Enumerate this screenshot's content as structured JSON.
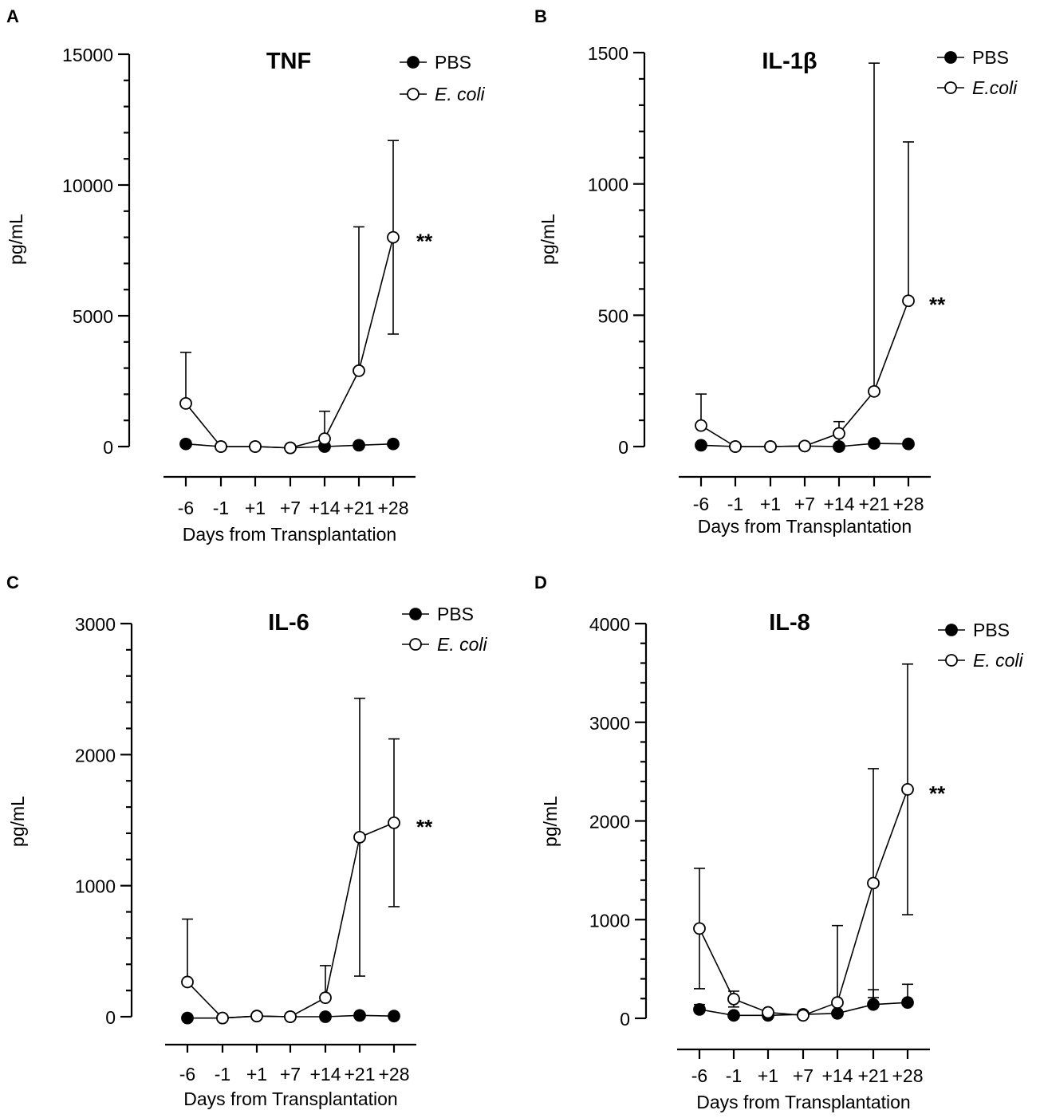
{
  "figure": {
    "panels": [
      "A",
      "B",
      "C",
      "D"
    ]
  },
  "chart_data": [
    {
      "panel": "A",
      "type": "line",
      "title": "TNF",
      "xlabel": "Days from Transplantation",
      "ylabel": "pg/mL",
      "categories": [
        "-6",
        "-1",
        "+1",
        "+7",
        "+14",
        "+21",
        "+28"
      ],
      "ylim": [
        0,
        15000
      ],
      "yticks": [
        0,
        5000,
        10000,
        15000
      ],
      "legend_position": "top-right",
      "significance": "**",
      "series": [
        {
          "name": "PBS",
          "italic": false,
          "marker": "filled",
          "values": [
            100,
            0,
            0,
            -50,
            0,
            50,
            100
          ],
          "err": [
            0,
            0,
            0,
            0,
            0,
            0,
            0
          ]
        },
        {
          "name": "E. coli",
          "italic": true,
          "marker": "open",
          "values": [
            1650,
            0,
            0,
            -50,
            300,
            2900,
            8000
          ],
          "err": [
            1950,
            0,
            0,
            0,
            1050,
            5500,
            3700
          ]
        }
      ]
    },
    {
      "panel": "B",
      "type": "line",
      "title": "IL-1β",
      "xlabel": "Days from Transplantation",
      "ylabel": "pg/mL",
      "categories": [
        "-6",
        "-1",
        "+1",
        "+7",
        "+14",
        "+21",
        "+28"
      ],
      "ylim": [
        0,
        1500
      ],
      "yticks": [
        0,
        500,
        1000,
        1500
      ],
      "legend_position": "top-right",
      "significance": "**",
      "series": [
        {
          "name": "PBS",
          "italic": false,
          "marker": "filled",
          "values": [
            5,
            0,
            0,
            2,
            0,
            12,
            10
          ],
          "err": [
            0,
            0,
            0,
            0,
            0,
            0,
            0
          ]
        },
        {
          "name": "E.coli",
          "italic": true,
          "marker": "open",
          "values": [
            80,
            0,
            0,
            2,
            50,
            210,
            555
          ],
          "err": [
            120,
            0,
            0,
            0,
            45,
            1250,
            605
          ]
        }
      ]
    },
    {
      "panel": "C",
      "type": "line",
      "title": "IL-6",
      "xlabel": "Days from Transplantation",
      "ylabel": "pg/mL",
      "categories": [
        "-6",
        "-1",
        "+1",
        "+7",
        "+14",
        "+21",
        "+28"
      ],
      "ylim": [
        0,
        3000
      ],
      "yticks": [
        0,
        1000,
        2000,
        3000
      ],
      "legend_position": "top-right",
      "significance": "**",
      "series": [
        {
          "name": "PBS",
          "italic": false,
          "marker": "filled",
          "values": [
            -10,
            -10,
            5,
            0,
            0,
            10,
            5
          ],
          "err": [
            0,
            0,
            0,
            0,
            0,
            0,
            0
          ]
        },
        {
          "name": "E. coli",
          "italic": true,
          "marker": "open",
          "values": [
            265,
            -10,
            5,
            0,
            145,
            1370,
            1480
          ],
          "err": [
            480,
            0,
            0,
            0,
            245,
            1060,
            640
          ]
        }
      ]
    },
    {
      "panel": "D",
      "type": "line",
      "title": "IL-8",
      "xlabel": "Days from Transplantation",
      "ylabel": "pg/mL",
      "categories": [
        "-6",
        "-1",
        "+1",
        "+7",
        "+14",
        "+21",
        "+28"
      ],
      "ylim": [
        0,
        4000
      ],
      "yticks": [
        0,
        1000,
        2000,
        3000,
        4000
      ],
      "legend_position": "top-right",
      "significance": "**",
      "series": [
        {
          "name": "PBS",
          "italic": false,
          "marker": "filled",
          "values": [
            90,
            30,
            30,
            40,
            50,
            140,
            160
          ],
          "err": [
            50,
            0,
            0,
            0,
            0,
            150,
            185
          ]
        },
        {
          "name": "E. coli",
          "italic": true,
          "marker": "open",
          "values": [
            910,
            195,
            60,
            30,
            160,
            1370,
            2320
          ],
          "err": [
            610,
            80,
            0,
            0,
            780,
            1160,
            1270
          ]
        }
      ]
    }
  ]
}
